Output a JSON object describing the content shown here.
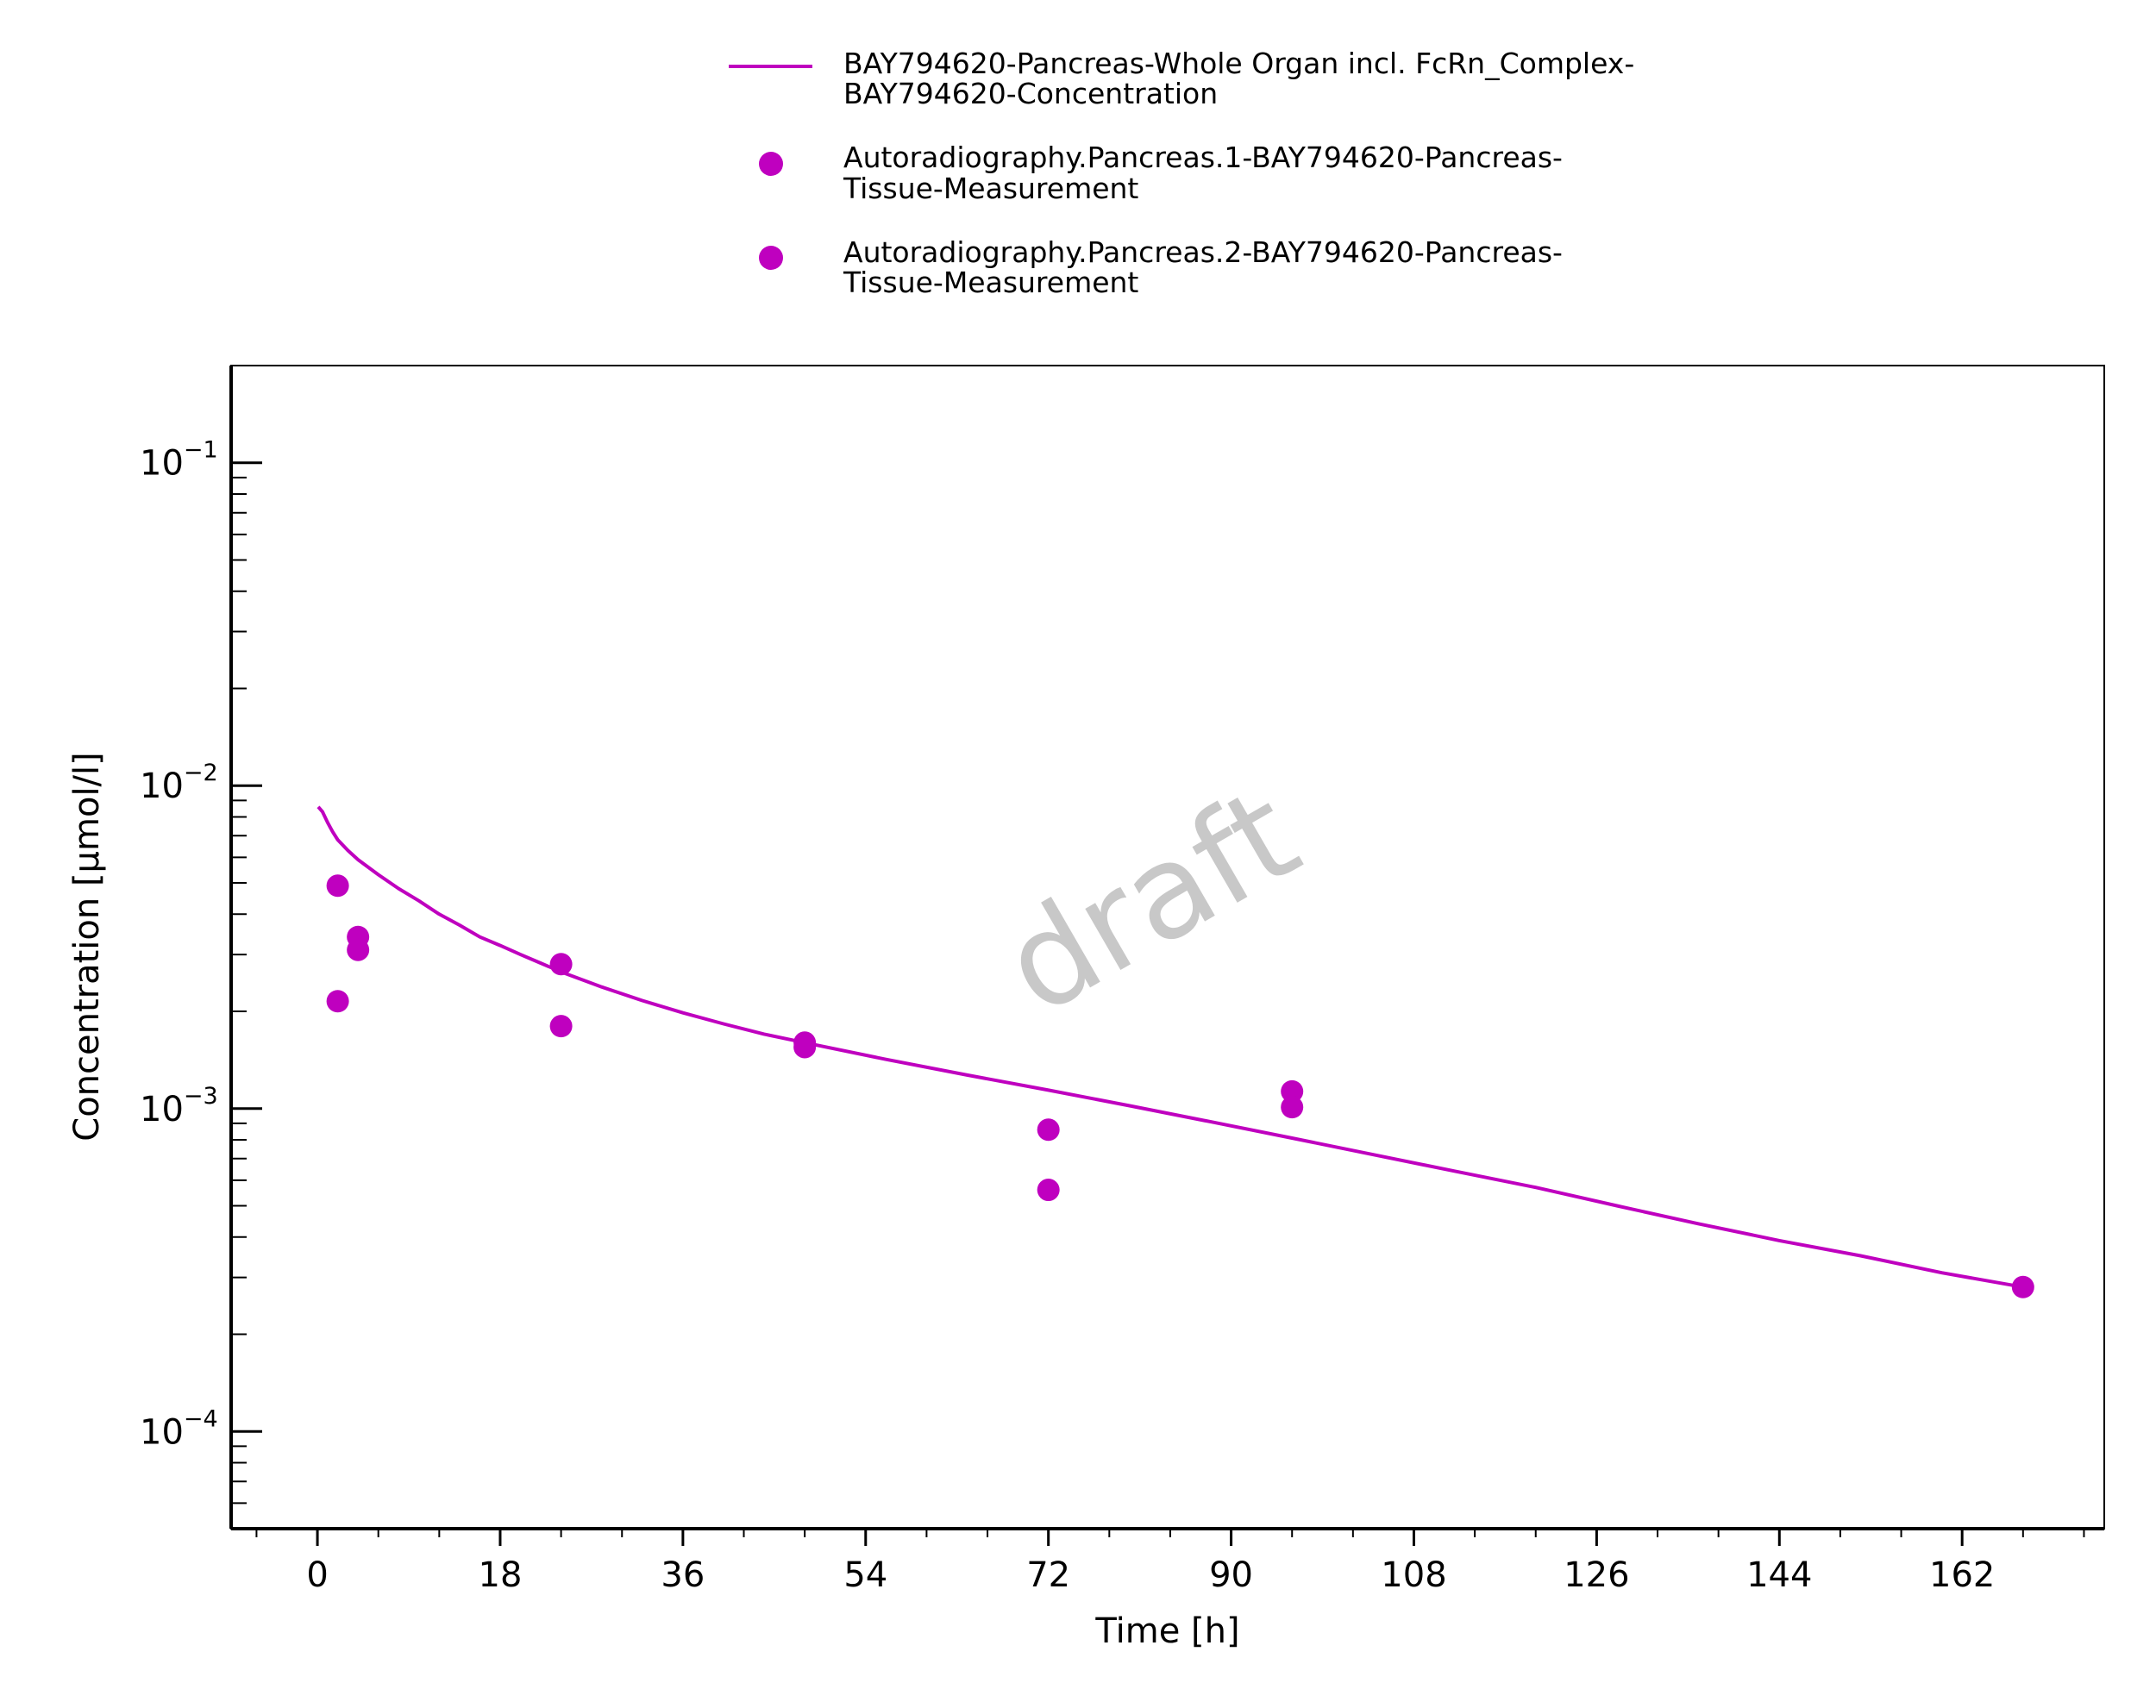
{
  "chart_data": {
    "type": "scatter",
    "title": "",
    "xlabel": "Time [h]",
    "ylabel": "Concentration [µmol/l]",
    "xlim": [
      -8.5,
      176
    ],
    "ylim": [
      5e-05,
      0.2
    ],
    "yscale": "log",
    "x_ticks": [
      0,
      18,
      36,
      54,
      72,
      90,
      108,
      126,
      144,
      162
    ],
    "x_tick_labels": [
      "0",
      "18",
      "36",
      "54",
      "72",
      "90",
      "108",
      "126",
      "144",
      "162"
    ],
    "y_ticks": [
      0.0001,
      0.001,
      0.01,
      0.1
    ],
    "y_tick_labels": [
      {
        "base": "10",
        "exp": "−4"
      },
      {
        "base": "10",
        "exp": "−3"
      },
      {
        "base": "10",
        "exp": "−2"
      },
      {
        "base": "10",
        "exp": "−1"
      }
    ],
    "grid": false,
    "legend_position": "top-center",
    "watermark": "draft",
    "color": "#bf00bf",
    "series": [
      {
        "name": "BAY794620-Pancreas-Whole Organ incl. FcRn_Complex-BAY794620-Concentration",
        "legend_lines": [
          "BAY794620-Pancreas-Whole Organ incl. FcRn_Complex-",
          "BAY794620-Concentration"
        ],
        "kind": "line",
        "x": [
          0.083,
          0.5,
          1,
          1.5,
          2,
          3,
          4,
          6,
          8,
          10,
          12,
          14,
          16,
          18,
          20,
          22,
          24,
          28,
          32,
          36,
          40,
          44,
          48,
          56,
          64,
          72,
          80,
          88,
          96,
          104,
          112,
          120,
          128,
          136,
          144,
          152,
          160,
          168
        ],
        "y": [
          0.0086,
          0.0083,
          0.0077,
          0.0072,
          0.0068,
          0.0063,
          0.0059,
          0.0053,
          0.0048,
          0.0044,
          0.004,
          0.0037,
          0.0034,
          0.0032,
          0.003,
          0.00282,
          0.00265,
          0.00238,
          0.00216,
          0.00198,
          0.00183,
          0.0017,
          0.0016,
          0.00142,
          0.00127,
          0.00114,
          0.00102,
          0.00091,
          0.00081,
          0.00072,
          0.00064,
          0.00057,
          0.0005,
          0.00044,
          0.00039,
          0.00035,
          0.00031,
          0.00028
        ]
      },
      {
        "name": "Autoradiography.Pancreas.1-BAY794620-Pancreas-Tissue-Measurement",
        "legend_lines": [
          "Autoradiography.Pancreas.1-BAY794620-Pancreas-",
          "Tissue-Measurement"
        ],
        "kind": "scatter",
        "x": [
          2,
          4,
          24,
          48,
          72,
          96,
          168
        ],
        "y": [
          0.0049,
          0.0034,
          0.0028,
          0.0016,
          0.00086,
          0.00113,
          0.00028
        ]
      },
      {
        "name": "Autoradiography.Pancreas.2-BAY794620-Pancreas-Tissue-Measurement",
        "legend_lines": [
          "Autoradiography.Pancreas.2-BAY794620-Pancreas-",
          "Tissue-Measurement"
        ],
        "kind": "scatter",
        "x": [
          2,
          4,
          24,
          48,
          72,
          96
        ],
        "y": [
          0.00215,
          0.0031,
          0.0018,
          0.00155,
          0.00056,
          0.00101
        ]
      }
    ]
  }
}
